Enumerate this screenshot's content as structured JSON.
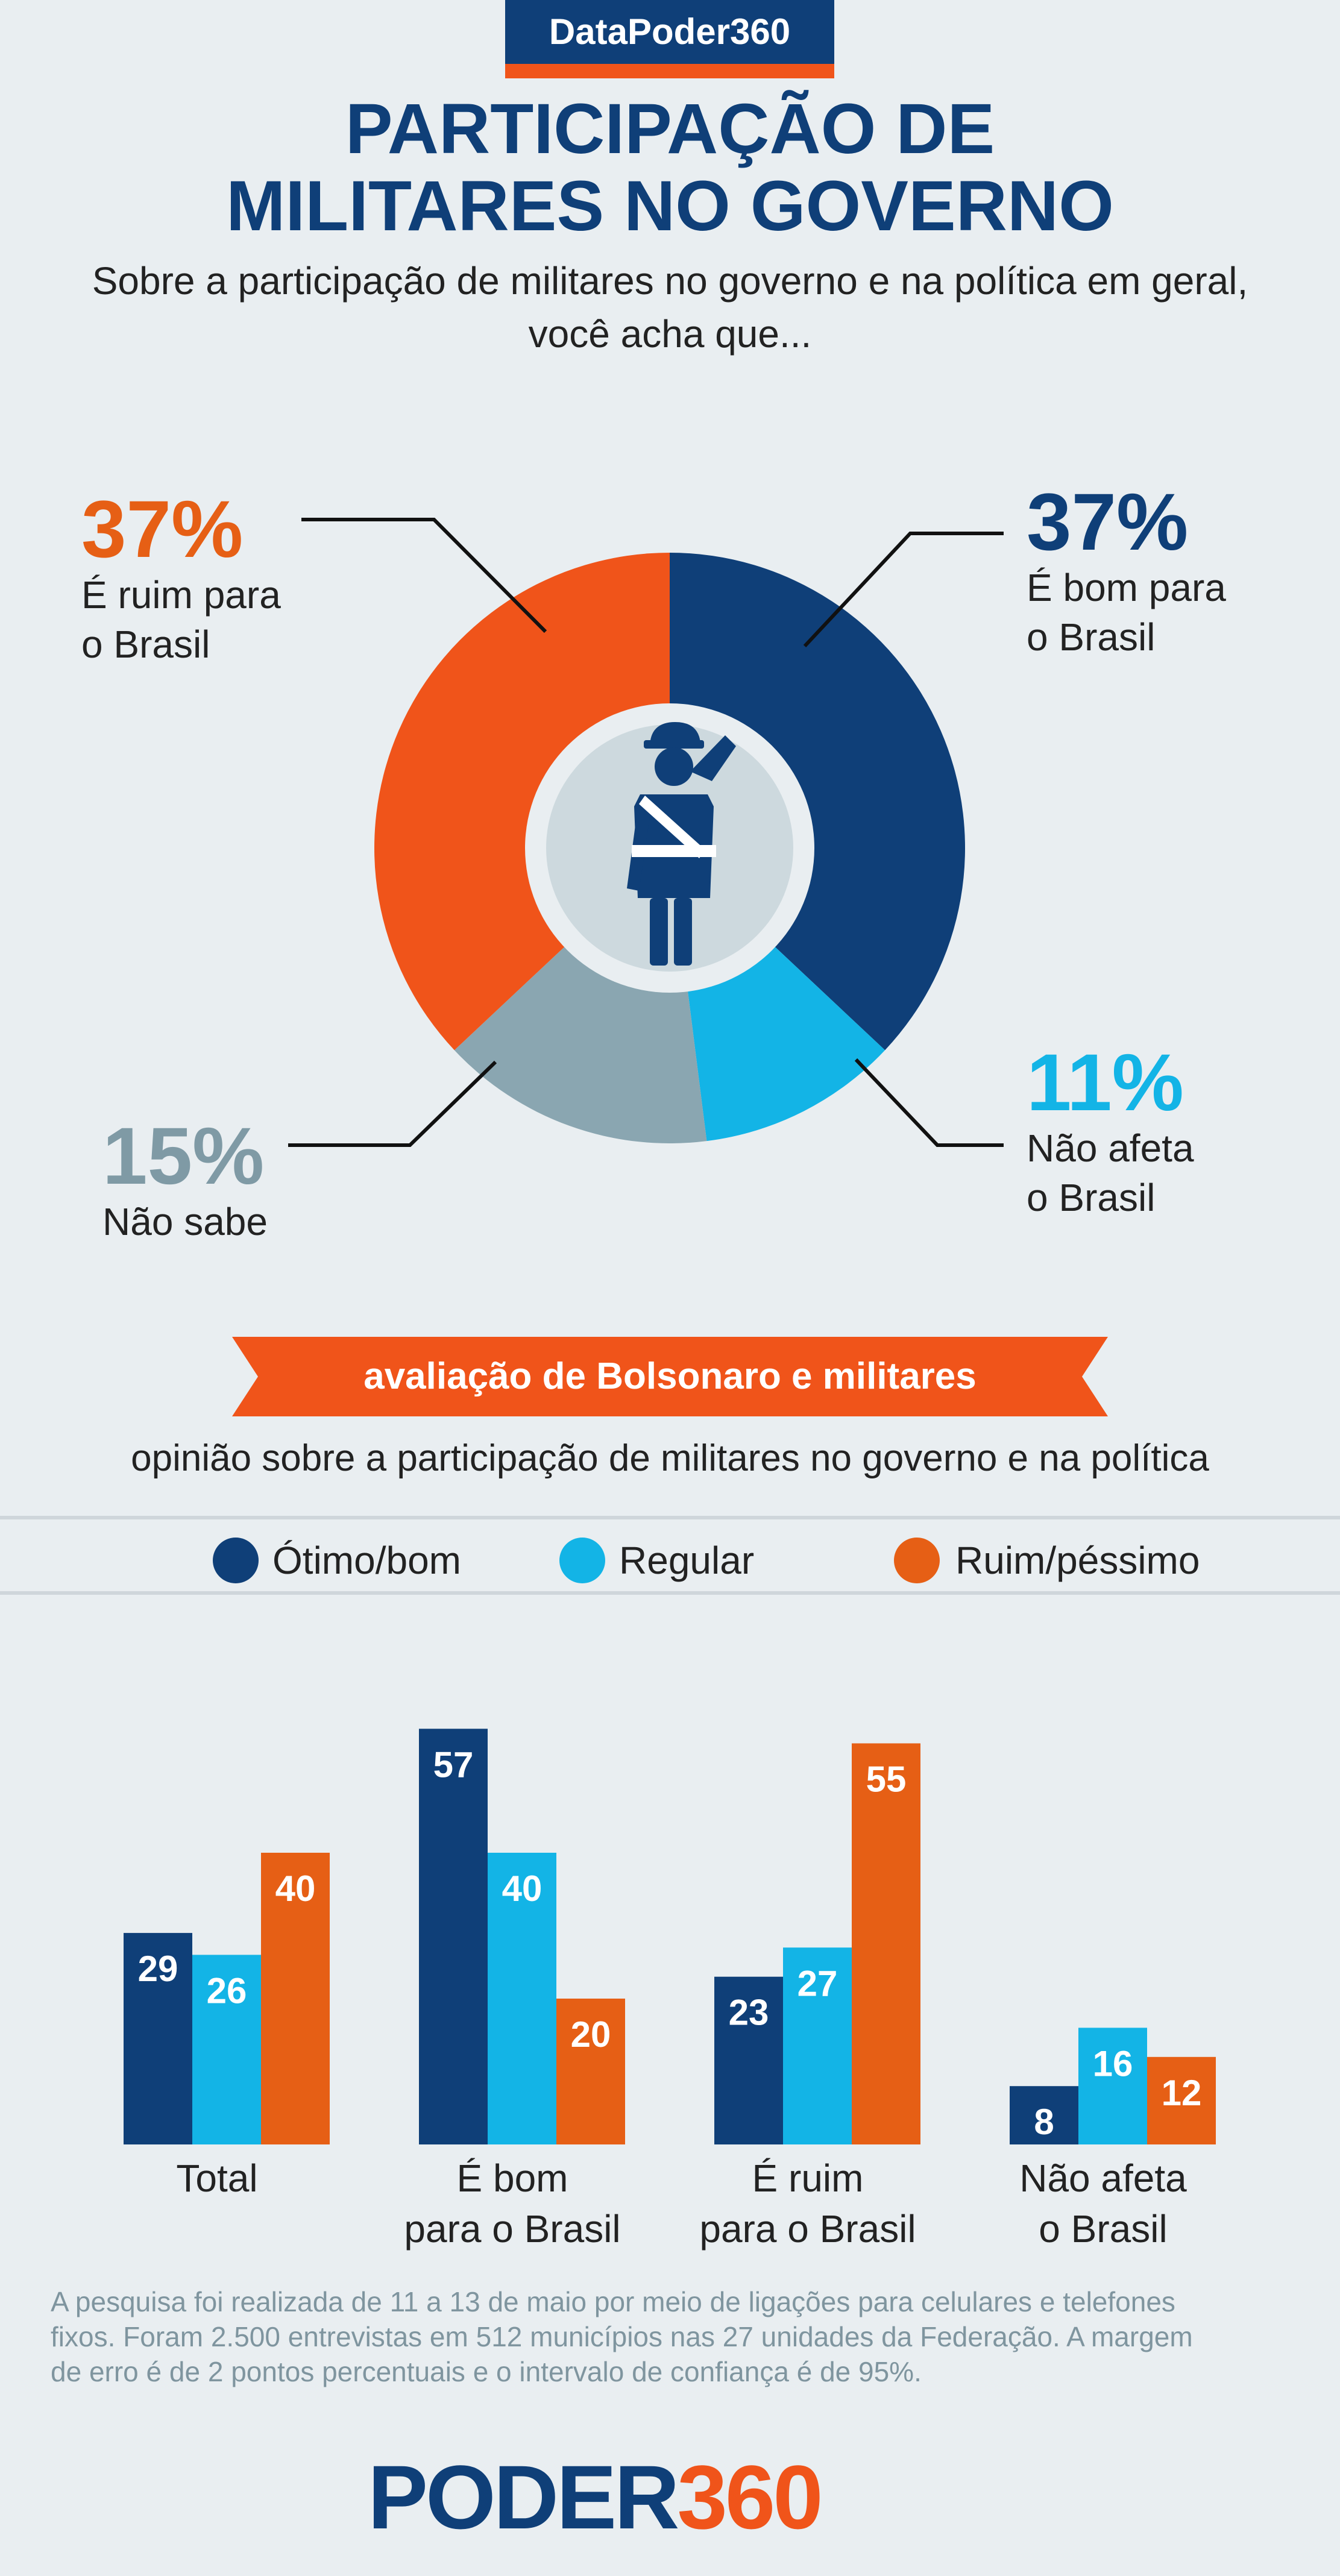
{
  "brand": {
    "badge": "DataPoder360",
    "logo_main": "PODER",
    "logo_num": "360"
  },
  "colors": {
    "navy": "#0f3f78",
    "cyan": "#13b4e6",
    "orange": "#f0541a",
    "gray": "#8aa6b1",
    "bar_orange": "#e65f15"
  },
  "title": {
    "line1": "PARTICIPAÇÃO DE",
    "line2": "MILITARES NO GOVERNO"
  },
  "subtitle": {
    "line1": "Sobre a participação de militares no governo e na política em geral,",
    "line2": "você acha que..."
  },
  "center_icon": "saluting-soldier-icon",
  "chart_data": [
    {
      "type": "pie",
      "slices": [
        {
          "pct_label": "37%",
          "value": 37,
          "label_line1": "É bom para",
          "label_line2": "o Brasil",
          "color": "#0f3f78"
        },
        {
          "pct_label": "11%",
          "value": 11,
          "label_line1": "Não afeta",
          "label_line2": "o Brasil",
          "color": "#13b4e6"
        },
        {
          "pct_label": "15%",
          "value": 15,
          "label_line1": "Não sabe",
          "label_line2": "",
          "color": "#8aa6b1"
        },
        {
          "pct_label": "37%",
          "value": 37,
          "label_line1": "É ruim para",
          "label_line2": "o Brasil",
          "color": "#f0541a"
        }
      ]
    },
    {
      "type": "bar",
      "banner": "avaliação de Bolsonaro e militares",
      "description": "opinião sobre a participação de militares no governo e na política",
      "legend_position": "top",
      "series": [
        {
          "name": "Ótimo/bom",
          "color": "#0f3f78",
          "values": [
            29,
            57,
            23,
            8
          ]
        },
        {
          "name": "Regular",
          "color": "#13b4e6",
          "values": [
            26,
            40,
            27,
            16
          ]
        },
        {
          "name": "Ruim/péssimo",
          "color": "#e65f15",
          "values": [
            40,
            20,
            55,
            12
          ]
        }
      ],
      "categories": [
        {
          "line1": "Total",
          "line2": ""
        },
        {
          "line1": "É bom",
          "line2": "para o Brasil"
        },
        {
          "line1": "É ruim",
          "line2": "para o Brasil"
        },
        {
          "line1": "Não afeta",
          "line2": "o Brasil"
        }
      ]
    }
  ],
  "footnote": {
    "line1": "A pesquisa foi realizada de 11 a 13 de maio por meio de ligações para celulares e telefones",
    "line2": "fixos. Foram 2.500 entrevistas em 512 municípios nas 27 unidades da Federação. A margem",
    "line3": "de erro é de 2 pontos percentuais e o intervalo de confiança é de 95%."
  }
}
